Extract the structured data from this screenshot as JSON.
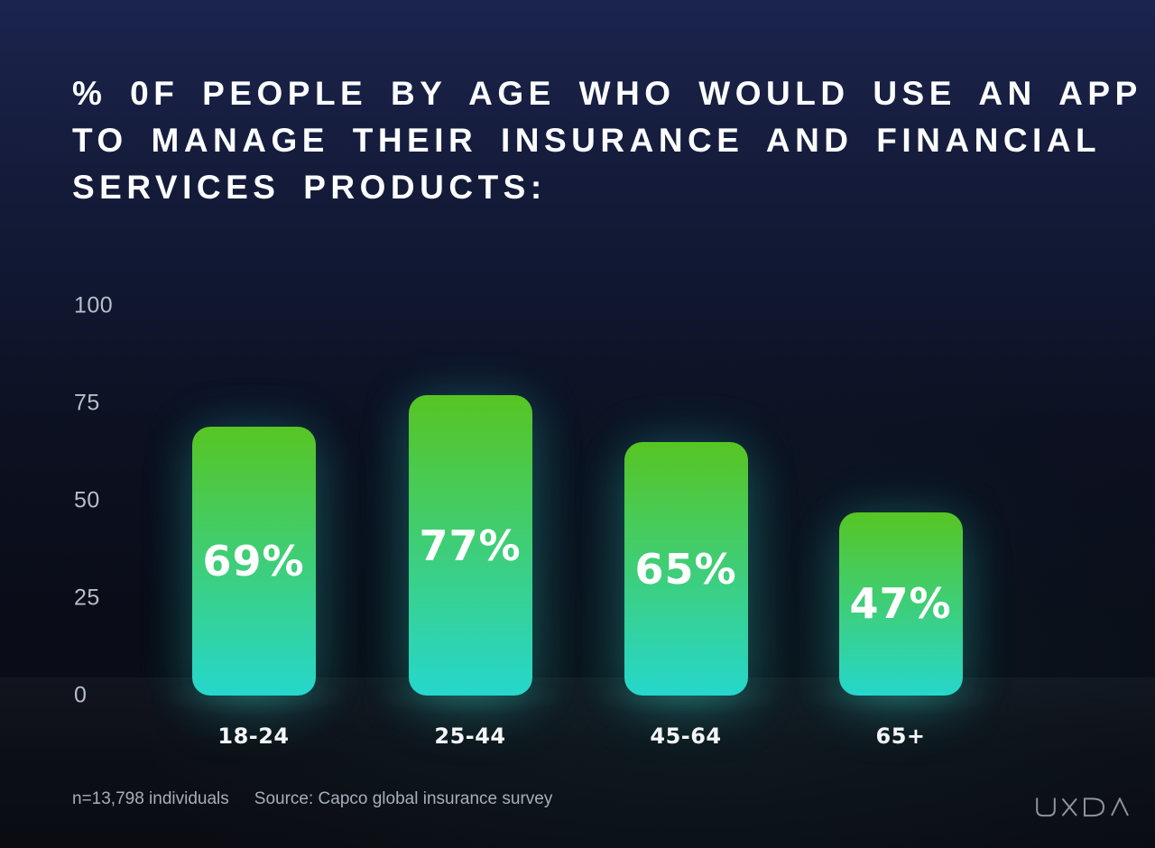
{
  "title": {
    "lines": [
      "% 0F PEOPLE BY AGE WHO WOULD USE AN APP",
      "TO MANAGE THEIR INSURANCE AND FINANCIAL",
      "SERVICES PRODUCTS:"
    ]
  },
  "chart_data": {
    "type": "bar",
    "title": "% 0F PEOPLE BY AGE WHO WOULD USE AN APP TO MANAGE THEIR INSURANCE AND FINANCIAL SERVICES PRODUCTS:",
    "categories": [
      "18-24",
      "25-44",
      "45-64",
      "65+"
    ],
    "values": [
      69,
      77,
      65,
      47
    ],
    "value_labels": [
      "69%",
      "77%",
      "65%",
      "47%"
    ],
    "xlabel": "",
    "ylabel": "",
    "ylim": [
      0,
      100
    ],
    "yticks": [
      0,
      25,
      50,
      75,
      100
    ],
    "grid": false,
    "legend_position": "none",
    "bar_gradient_top": "#57c523",
    "bar_gradient_bottom": "#26d7cc",
    "bar_label_color": "#ffffff"
  },
  "footer": {
    "sample_size": "n=13,798 individuals",
    "source": "Source: Capco global insurance survey"
  },
  "branding": {
    "logo": "UXDA"
  },
  "colors": {
    "background_top": "#1b244e",
    "background_bottom": "#0a0c12",
    "axis_label": "#b7bec9",
    "category_label": "#f4f6f8",
    "footer_text": "#a7aeb8",
    "logo": "#8e939c"
  }
}
